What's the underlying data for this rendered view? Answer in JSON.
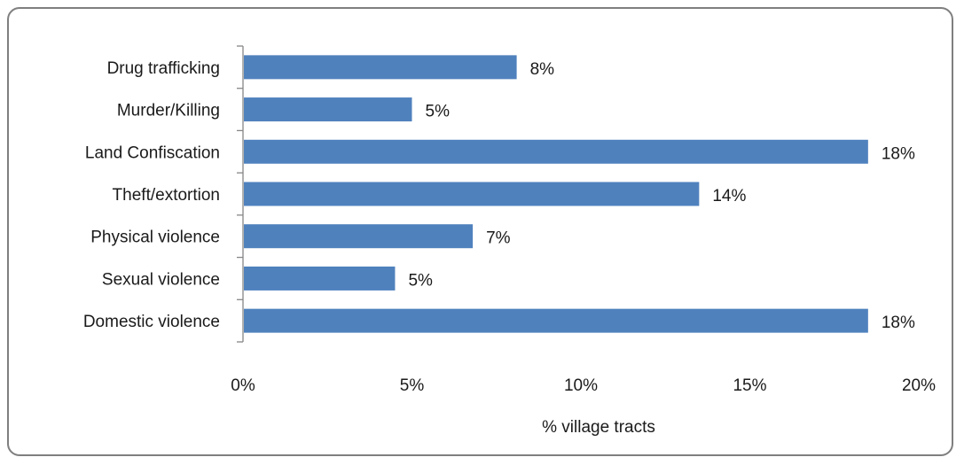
{
  "chart_data": {
    "type": "bar",
    "orientation": "horizontal",
    "categories": [
      "Drug trafficking",
      "Murder/Killing",
      "Land Confiscation",
      "Theft/extortion",
      "Physical violence",
      "Sexual violence",
      "Domestic violence"
    ],
    "values": [
      8.1,
      5.0,
      18.5,
      13.5,
      6.8,
      4.5,
      18.5
    ],
    "data_labels": [
      "8%",
      "5%",
      "18%",
      "14%",
      "7%",
      "5%",
      "18%"
    ],
    "x_ticks": [
      "0%",
      "5%",
      "10%",
      "15%",
      "20%"
    ],
    "xlim": [
      0,
      20
    ],
    "xlabel": "% village tracts",
    "ylabel": "",
    "title": "",
    "grid": false,
    "bar_color": "#4f81bd"
  }
}
